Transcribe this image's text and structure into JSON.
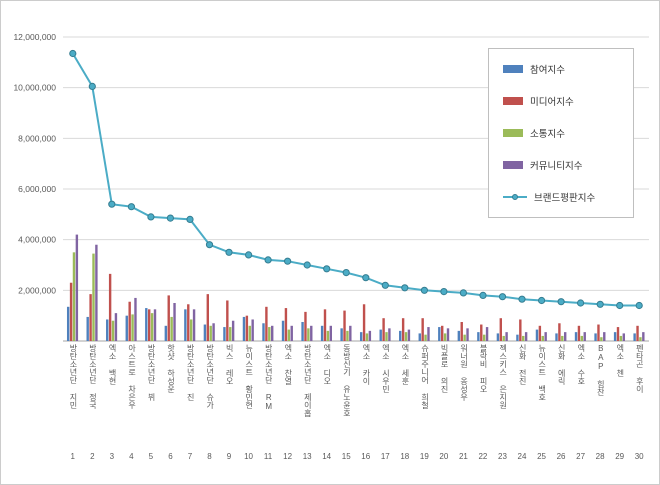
{
  "chart_data": {
    "type": "bar",
    "title": "",
    "legend_position": "top-right",
    "grid": true,
    "categories": [
      "방탄소년단 지민",
      "방탄소년단 정국",
      "엑소 백현",
      "아스트로 차은우",
      "방탄소년단 뷔",
      "핫샷 하성운",
      "방탄소년단 진",
      "방탄소년단 슈가",
      "빅스 레오",
      "뉴이스트 황민현",
      "방탄소년단 RM",
      "엑소 찬열",
      "방탄소년단 제이홉",
      "엑소 디오",
      "동방신기 유노윤호",
      "엑소 카이",
      "엑소 시우민",
      "엑소 세훈",
      "슈퍼주니어 희철",
      "빅플로 의진",
      "워너원 옹성우",
      "블락비 피오",
      "젝스키스 은지원",
      "신화 전진",
      "뉴이스트 백호",
      "신화 에릭",
      "엑소 수호",
      "BAP 힘찬",
      "엑소 첸",
      "펜타곤 후이"
    ],
    "ranks": [
      1,
      2,
      3,
      4,
      5,
      6,
      7,
      8,
      9,
      10,
      11,
      12,
      13,
      14,
      15,
      16,
      17,
      18,
      19,
      20,
      21,
      22,
      23,
      24,
      25,
      26,
      27,
      28,
      29,
      30
    ],
    "series": [
      {
        "name": "참여지수",
        "color": "#4F81BD",
        "values": [
          1350000,
          950000,
          850000,
          1000000,
          1300000,
          600000,
          1250000,
          650000,
          550000,
          950000,
          700000,
          800000,
          750000,
          600000,
          500000,
          350000,
          450000,
          400000,
          300000,
          550000,
          400000,
          350000,
          300000,
          250000,
          450000,
          300000,
          350000,
          300000,
          350000,
          300000
        ]
      },
      {
        "name": "미디어지수",
        "color": "#C0504D",
        "values": [
          2300000,
          1850000,
          2650000,
          1550000,
          1250000,
          1800000,
          1450000,
          1850000,
          1600000,
          1000000,
          1350000,
          1300000,
          1150000,
          1250000,
          1200000,
          1450000,
          900000,
          900000,
          900000,
          600000,
          750000,
          650000,
          900000,
          850000,
          600000,
          700000,
          600000,
          650000,
          550000,
          600000
        ]
      },
      {
        "name": "소통지수",
        "color": "#9BBB59",
        "values": [
          3500000,
          3450000,
          800000,
          1050000,
          1100000,
          950000,
          850000,
          600000,
          550000,
          600000,
          550000,
          450000,
          500000,
          400000,
          400000,
          300000,
          350000,
          350000,
          250000,
          300000,
          250000,
          250000,
          200000,
          200000,
          200000,
          200000,
          200000,
          150000,
          200000,
          150000
        ]
      },
      {
        "name": "커뮤니티지수",
        "color": "#8064A2",
        "values": [
          4200000,
          3800000,
          1100000,
          1700000,
          1250000,
          1500000,
          1250000,
          700000,
          800000,
          850000,
          600000,
          600000,
          600000,
          600000,
          600000,
          400000,
          500000,
          450000,
          550000,
          500000,
          500000,
          550000,
          350000,
          350000,
          350000,
          350000,
          350000,
          350000,
          300000,
          350000
        ]
      }
    ],
    "line_series": {
      "name": "브랜드평판지수",
      "color": "#4BACC6",
      "marker_border": "#357D91",
      "values": [
        11350000,
        10050000,
        5400000,
        5300000,
        4900000,
        4850000,
        4800000,
        3800000,
        3500000,
        3400000,
        3200000,
        3150000,
        3000000,
        2850000,
        2700000,
        2500000,
        2200000,
        2100000,
        2000000,
        1950000,
        1900000,
        1800000,
        1750000,
        1650000,
        1600000,
        1550000,
        1500000,
        1450000,
        1400000,
        1400000
      ]
    },
    "y_axis": {
      "min": 0,
      "max": 12000000,
      "step": 2000000,
      "tick_values": [
        2000000,
        4000000,
        6000000,
        8000000,
        10000000,
        12000000
      ],
      "tick_labels": [
        "2,000,000",
        "4,000,000",
        "6,000,000",
        "8,000,000",
        "10,000,000",
        "12,000,000"
      ]
    }
  }
}
